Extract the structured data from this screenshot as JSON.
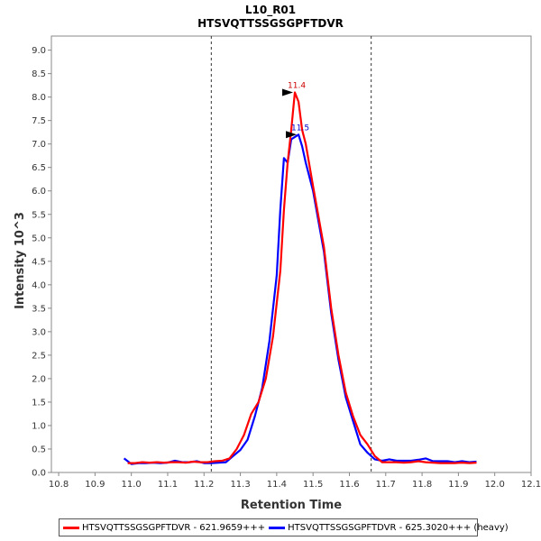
{
  "chart_data": {
    "type": "line",
    "title": "L10_R01",
    "subtitle": "HTSVQTTSSGSGPFTDVR",
    "xlabel": "Retention Time",
    "ylabel": "Intensity 10^3",
    "xlim": [
      10.78,
      12.1
    ],
    "ylim": [
      0,
      9.3
    ],
    "x_ticks": [
      "10.8",
      "10.9",
      "11.0",
      "11.1",
      "11.2",
      "11.3",
      "11.4",
      "11.5",
      "11.6",
      "11.7",
      "11.8",
      "11.9",
      "12.0",
      "12.1"
    ],
    "y_ticks": [
      "0.0",
      "0.5",
      "1.0",
      "1.5",
      "2.0",
      "2.5",
      "3.0",
      "3.5",
      "4.0",
      "4.5",
      "5.0",
      "5.5",
      "6.0",
      "6.5",
      "7.0",
      "7.5",
      "8.0",
      "8.5",
      "9.0"
    ],
    "boundaries": [
      11.22,
      11.66
    ],
    "grid": false,
    "legend_position": "bottom",
    "series": [
      {
        "name": "HTSVQTTSSGSGPFTDVR - 621.9659+++",
        "color": "#ff0000",
        "points": [
          [
            10.99,
            0.2
          ],
          [
            11.01,
            0.2
          ],
          [
            11.03,
            0.22
          ],
          [
            11.05,
            0.21
          ],
          [
            11.07,
            0.22
          ],
          [
            11.09,
            0.21
          ],
          [
            11.11,
            0.22
          ],
          [
            11.13,
            0.22
          ],
          [
            11.15,
            0.21
          ],
          [
            11.17,
            0.23
          ],
          [
            11.19,
            0.22
          ],
          [
            11.21,
            0.22
          ],
          [
            11.23,
            0.24
          ],
          [
            11.25,
            0.25
          ],
          [
            11.27,
            0.3
          ],
          [
            11.29,
            0.5
          ],
          [
            11.31,
            0.8
          ],
          [
            11.33,
            1.25
          ],
          [
            11.35,
            1.5
          ],
          [
            11.37,
            2.0
          ],
          [
            11.39,
            2.9
          ],
          [
            11.41,
            4.3
          ],
          [
            11.42,
            5.6
          ],
          [
            11.43,
            6.6
          ],
          [
            11.44,
            7.3
          ],
          [
            11.45,
            8.1
          ],
          [
            11.46,
            7.9
          ],
          [
            11.47,
            7.3
          ],
          [
            11.48,
            7.0
          ],
          [
            11.5,
            6.1
          ],
          [
            11.53,
            4.8
          ],
          [
            11.55,
            3.5
          ],
          [
            11.57,
            2.5
          ],
          [
            11.59,
            1.7
          ],
          [
            11.61,
            1.2
          ],
          [
            11.63,
            0.8
          ],
          [
            11.65,
            0.6
          ],
          [
            11.67,
            0.35
          ],
          [
            11.69,
            0.22
          ],
          [
            11.71,
            0.22
          ],
          [
            11.73,
            0.22
          ],
          [
            11.75,
            0.21
          ],
          [
            11.77,
            0.22
          ],
          [
            11.79,
            0.24
          ],
          [
            11.81,
            0.22
          ],
          [
            11.83,
            0.21
          ],
          [
            11.85,
            0.2
          ],
          [
            11.87,
            0.2
          ],
          [
            11.89,
            0.2
          ],
          [
            11.91,
            0.21
          ],
          [
            11.93,
            0.2
          ],
          [
            11.95,
            0.21
          ]
        ]
      },
      {
        "name": "HTSVQTTSSGSGPFTDVR - 625.3020+++ (heavy)",
        "color": "#0000ff",
        "points": [
          [
            10.98,
            0.3
          ],
          [
            11.0,
            0.18
          ],
          [
            11.02,
            0.2
          ],
          [
            11.04,
            0.2
          ],
          [
            11.06,
            0.21
          ],
          [
            11.08,
            0.2
          ],
          [
            11.1,
            0.21
          ],
          [
            11.12,
            0.25
          ],
          [
            11.14,
            0.22
          ],
          [
            11.16,
            0.22
          ],
          [
            11.18,
            0.24
          ],
          [
            11.2,
            0.2
          ],
          [
            11.22,
            0.2
          ],
          [
            11.24,
            0.21
          ],
          [
            11.26,
            0.22
          ],
          [
            11.28,
            0.35
          ],
          [
            11.3,
            0.48
          ],
          [
            11.32,
            0.7
          ],
          [
            11.34,
            1.2
          ],
          [
            11.36,
            1.8
          ],
          [
            11.38,
            2.8
          ],
          [
            11.4,
            4.2
          ],
          [
            11.41,
            5.6
          ],
          [
            11.42,
            6.7
          ],
          [
            11.43,
            6.6
          ],
          [
            11.44,
            7.1
          ],
          [
            11.45,
            7.15
          ],
          [
            11.46,
            7.2
          ],
          [
            11.47,
            6.95
          ],
          [
            11.48,
            6.6
          ],
          [
            11.5,
            6.0
          ],
          [
            11.53,
            4.7
          ],
          [
            11.55,
            3.4
          ],
          [
            11.57,
            2.4
          ],
          [
            11.59,
            1.6
          ],
          [
            11.61,
            1.1
          ],
          [
            11.63,
            0.6
          ],
          [
            11.65,
            0.42
          ],
          [
            11.67,
            0.28
          ],
          [
            11.69,
            0.25
          ],
          [
            11.71,
            0.28
          ],
          [
            11.73,
            0.25
          ],
          [
            11.75,
            0.25
          ],
          [
            11.77,
            0.25
          ],
          [
            11.79,
            0.27
          ],
          [
            11.81,
            0.3
          ],
          [
            11.83,
            0.24
          ],
          [
            11.85,
            0.24
          ],
          [
            11.87,
            0.24
          ],
          [
            11.89,
            0.22
          ],
          [
            11.91,
            0.24
          ],
          [
            11.93,
            0.22
          ],
          [
            11.95,
            0.23
          ]
        ]
      }
    ],
    "peak_labels": [
      {
        "text": "11.4",
        "x": 11.45,
        "y": 8.1,
        "color": "#cc0000"
      },
      {
        "text": "11.5",
        "x": 11.46,
        "y": 7.2,
        "color": "#0000cc"
      }
    ]
  }
}
